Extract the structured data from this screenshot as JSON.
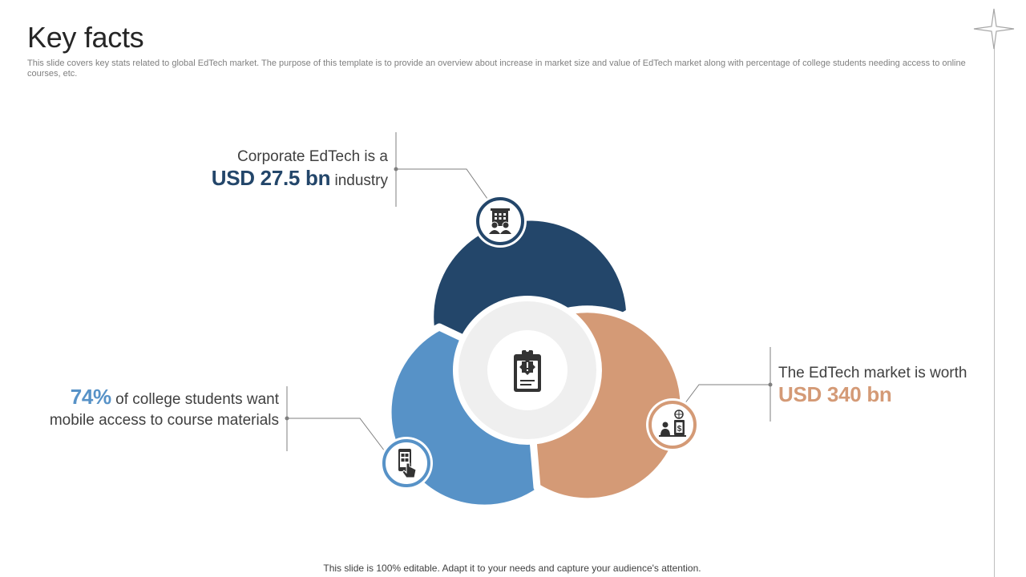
{
  "slide": {
    "title": "Key facts",
    "subtitle": "This slide covers key stats related to global EdTech market. The purpose of this template is to provide an overview about increase in market size and value of EdTech market along with percentage of college students needing access to online courses, etc.",
    "footer": "This slide is 100% editable. Adapt it to your needs and capture your audience's attention."
  },
  "facts": [
    {
      "pre": "Corporate EdTech is a",
      "highlight": "USD 27.5 bn",
      "post": " industry",
      "color": "#23466a",
      "icon": "corporate-building-people-icon"
    },
    {
      "highlight": "74%",
      "post": " of college students want mobile access to course materials",
      "color": "#5792c7",
      "icon": "mobile-touch-icon"
    },
    {
      "pre": "The EdTech market is worth ",
      "highlight": "USD 340 bn",
      "color": "#d49a76",
      "icon": "person-money-globe-icon"
    }
  ],
  "center": {
    "icon": "clipboard-badge-icon"
  },
  "colors": {
    "navy": "#23466a",
    "blue": "#5792c7",
    "peach": "#d49a76",
    "center_ring": "#efefef",
    "connector": "#7f7f7f"
  }
}
